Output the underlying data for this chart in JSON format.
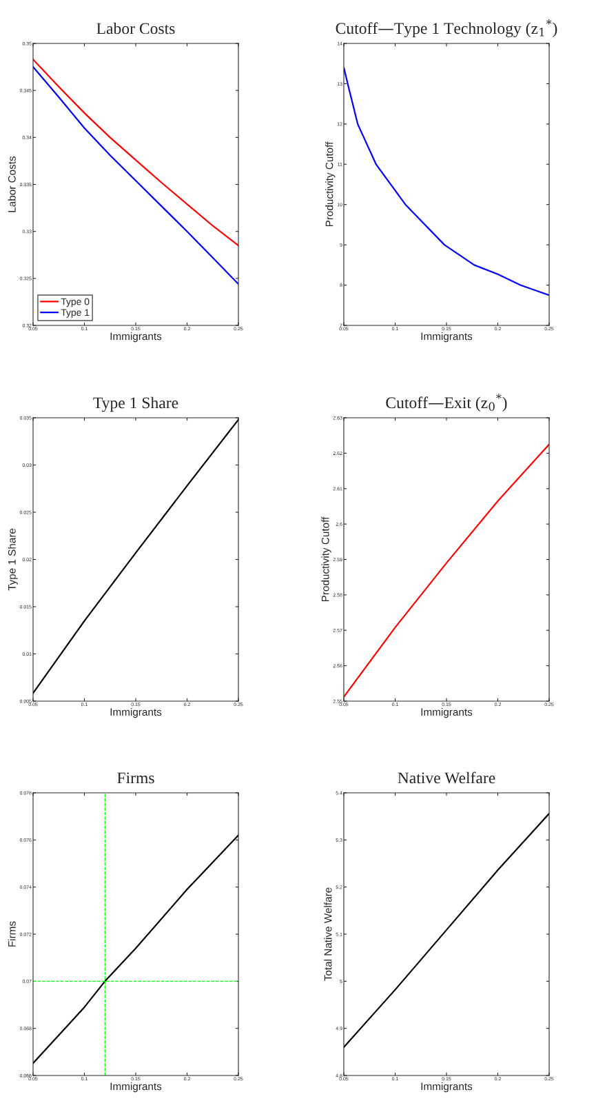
{
  "chart_data": [
    {
      "type": "line",
      "title": "Labor Costs",
      "xlabel": "Immigrants",
      "ylabel": "Labor Costs",
      "xlim": [
        0.05,
        0.25
      ],
      "xticks": [
        0.05,
        0.1,
        0.15,
        0.2,
        0.25
      ],
      "ylim": [
        0.32,
        0.35
      ],
      "yticks": [
        0.32,
        0.325,
        0.33,
        0.335,
        0.34,
        0.345,
        0.35
      ],
      "legend": "bottom left",
      "grid": false,
      "x": [
        0.05,
        0.075,
        0.1,
        0.125,
        0.15,
        0.175,
        0.2,
        0.225,
        0.25
      ],
      "series": [
        {
          "name": "Type 0",
          "color": "#ff0000",
          "values": [
            0.3483,
            0.3454,
            0.3426,
            0.34,
            0.3376,
            0.3352,
            0.3329,
            0.3306,
            0.3285
          ]
        },
        {
          "name": "Type 1",
          "color": "#0000ff",
          "values": [
            0.3475,
            0.3443,
            0.341,
            0.3381,
            0.3354,
            0.3327,
            0.33,
            0.3272,
            0.3244
          ]
        }
      ]
    },
    {
      "type": "line",
      "title": "Cutoff—Type 1 Technology (z$_{1}$$^{*}$)",
      "xlabel": "Immigrants",
      "ylabel": "Productivity Cutoff",
      "xlim": [
        0.05,
        0.25
      ],
      "xticks": [
        0.05,
        0.1,
        0.15,
        0.2,
        0.25
      ],
      "ylim": [
        7,
        14
      ],
      "yticks": [
        7,
        8,
        9,
        10,
        11,
        12,
        13,
        14
      ],
      "grid": false,
      "series": [
        {
          "color": "#0000ff",
          "x": [
            0.05,
            0.0538,
            0.0635,
            0.0814,
            0.11,
            0.148,
            0.177,
            0.2,
            0.222,
            0.25
          ],
          "values": [
            13.4,
            13,
            12,
            11,
            10,
            9,
            8.5,
            8.27,
            8,
            7.75
          ]
        }
      ]
    },
    {
      "type": "line",
      "title": "Type 1 Share",
      "xlabel": "Immigrants",
      "ylabel": "Type 1 Share",
      "xlim": [
        0.05,
        0.25
      ],
      "xticks": [
        0.05,
        0.1,
        0.15,
        0.2,
        0.25
      ],
      "ylim": [
        0.005,
        0.035
      ],
      "yticks": [
        0.005,
        0.01,
        0.015,
        0.02,
        0.025,
        0.03,
        0.035
      ],
      "grid": false,
      "x": [
        0.05,
        0.1,
        0.15,
        0.2,
        0.25
      ],
      "series": [
        {
          "color": "#000000",
          "values": [
            0.00585,
            0.0135,
            0.0207,
            0.0278,
            0.0348
          ]
        }
      ]
    },
    {
      "type": "line",
      "title": "Cutoff—Exit (z$_{0}$$^{*}$)",
      "xlabel": "Immigrants",
      "ylabel": "Productivity Cutoff",
      "xlim": [
        0.05,
        0.25
      ],
      "xticks": [
        0.05,
        0.1,
        0.15,
        0.2,
        0.25
      ],
      "ylim": [
        2.55,
        2.63
      ],
      "yticks": [
        2.55,
        2.56,
        2.57,
        2.58,
        2.59,
        2.6,
        2.61,
        2.62,
        2.63
      ],
      "grid": false,
      "x": [
        0.05,
        0.1,
        0.15,
        0.2,
        0.25
      ],
      "series": [
        {
          "color": "#ff0000",
          "values": [
            2.5512,
            2.5708,
            2.589,
            2.6065,
            2.6225
          ]
        }
      ]
    },
    {
      "type": "line",
      "title": "Firms",
      "xlabel": "Immigrants",
      "ylabel": "Firms",
      "xlim": [
        0.05,
        0.25
      ],
      "xticks": [
        0.05,
        0.1,
        0.15,
        0.2,
        0.25
      ],
      "ylim": [
        0.066,
        0.078
      ],
      "yticks": [
        0.066,
        0.068,
        0.07,
        0.072,
        0.074,
        0.076,
        0.078
      ],
      "grid": false,
      "x": [
        0.05,
        0.1,
        0.12,
        0.15,
        0.2,
        0.25
      ],
      "series": [
        {
          "color": "#000000",
          "values": [
            0.06652,
            0.0689,
            0.07,
            0.0714,
            0.0739,
            0.0762
          ]
        }
      ],
      "ref_lines": [
        {
          "axis": "x",
          "value": 0.12,
          "color": "#00ff00",
          "line_style": "dashed"
        },
        {
          "axis": "y",
          "value": 0.07,
          "color": "#00ff00",
          "line_style": "dashed"
        }
      ]
    },
    {
      "type": "line",
      "title": "Native Welfare",
      "xlabel": "Immigrants",
      "ylabel": "Total Native Welfare",
      "xlim": [
        0.05,
        0.25
      ],
      "xticks": [
        0.05,
        0.1,
        0.15,
        0.2,
        0.25
      ],
      "ylim": [
        4.8,
        5.4
      ],
      "yticks": [
        4.8,
        4.9,
        5,
        5.1,
        5.2,
        5.3,
        5.4
      ],
      "grid": false,
      "x": [
        0.05,
        0.1,
        0.15,
        0.2,
        0.25
      ],
      "series": [
        {
          "color": "#000000",
          "values": [
            4.86,
            4.982,
            5.109,
            5.236,
            5.356
          ]
        }
      ]
    }
  ]
}
